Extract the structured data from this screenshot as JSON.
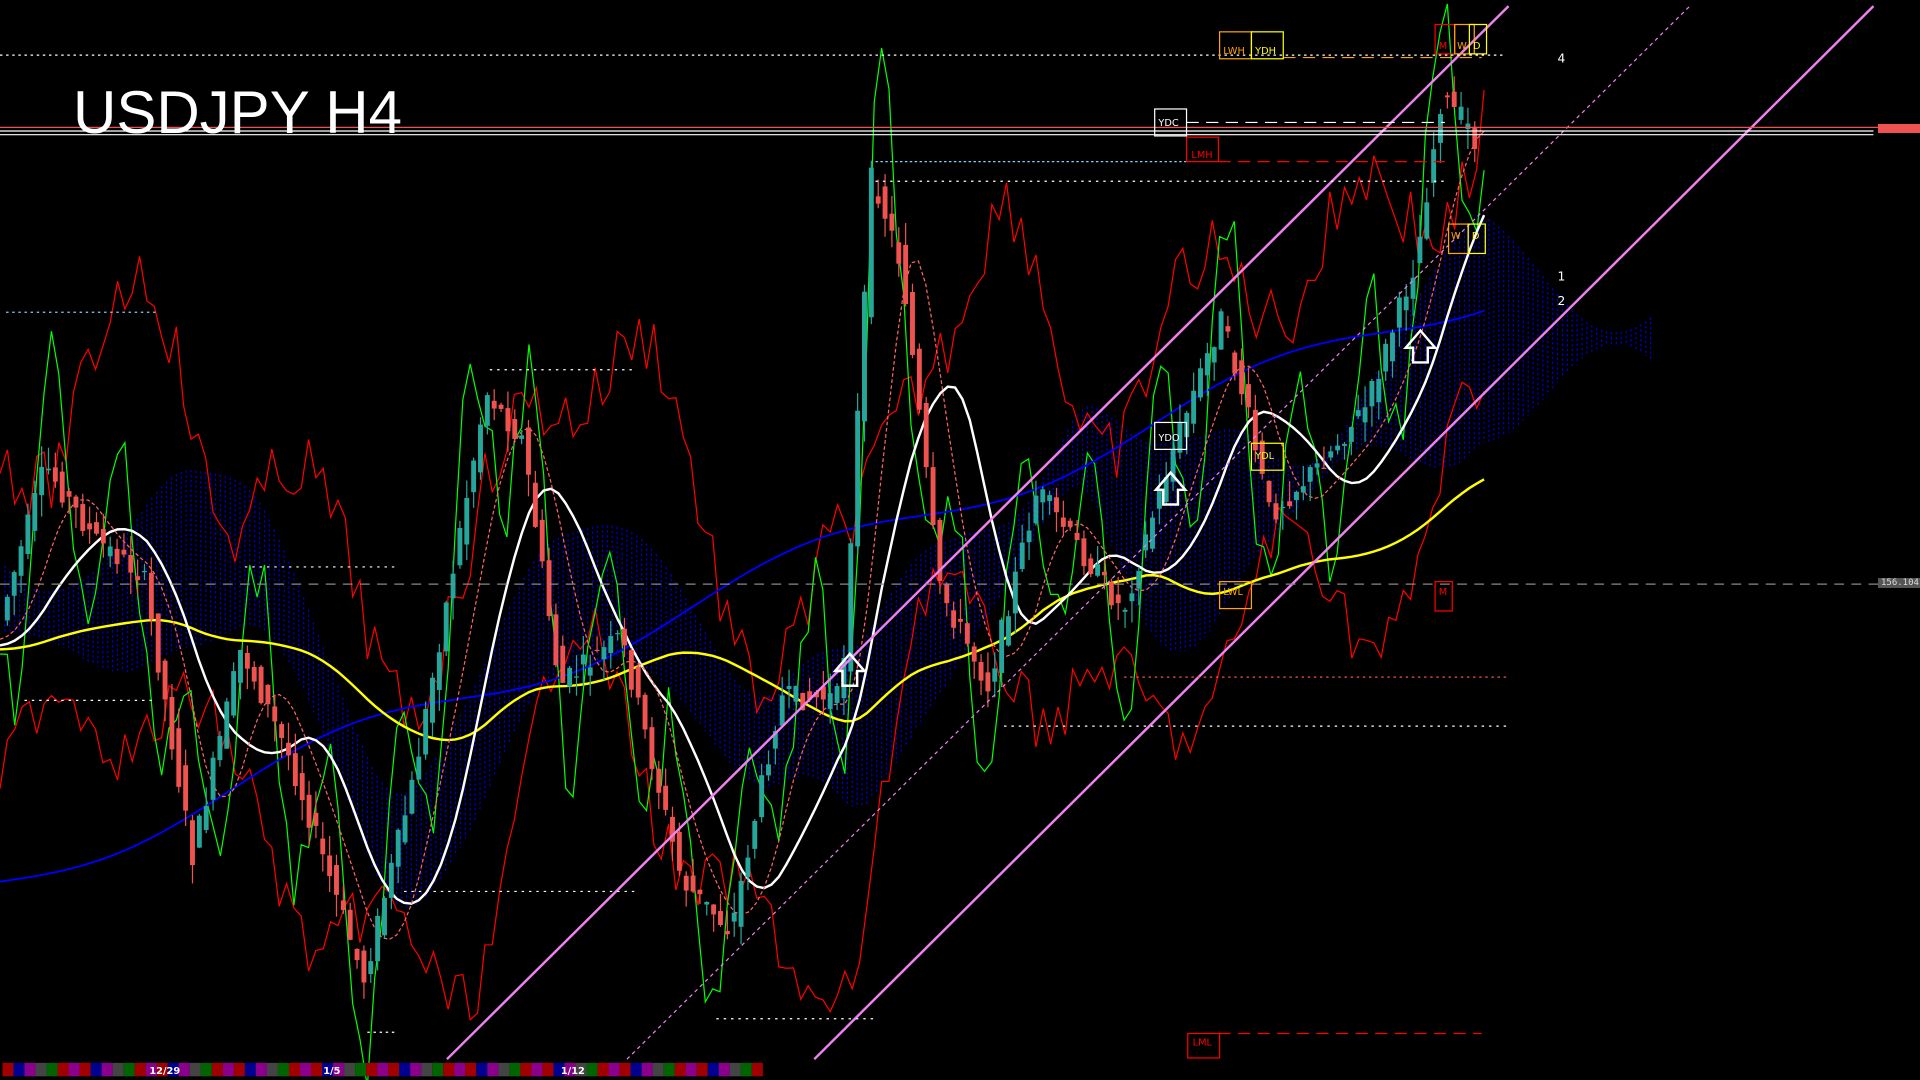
{
  "title": "USDJPY H4",
  "colors": {
    "background": "#000000",
    "bull": "#26a69a",
    "bear": "#ef5350",
    "channel": "#ee82ee",
    "ma_fast": "#ffffff",
    "ma_mid": "#ffff00",
    "ma_slow": "#0000ff",
    "envelope": "#ff0000",
    "oscillator": "#00ff00",
    "cloud_bull": "#0000cc",
    "cloud_bear": "#cc0000"
  },
  "levels": {
    "lwh": "LWH",
    "ydh": "YDH",
    "m": "M",
    "w": "W",
    "d": "D",
    "ydc": "YDC",
    "lmh": "LMH",
    "ydo": "YDO",
    "ydl": "YDL",
    "lwl": "LWL",
    "lml": "LML"
  },
  "projections": {
    "p4": "4",
    "p1": "1",
    "p2": "2"
  },
  "chart_data": {
    "type": "candlestick",
    "title": "USDJPY H4",
    "symbol": "USDJPY",
    "timeframe": "H4",
    "x_tick_labels": [
      "12/29",
      "1/5",
      "1/12"
    ],
    "marked_prices": [
      "156.104"
    ],
    "grid": false
  }
}
